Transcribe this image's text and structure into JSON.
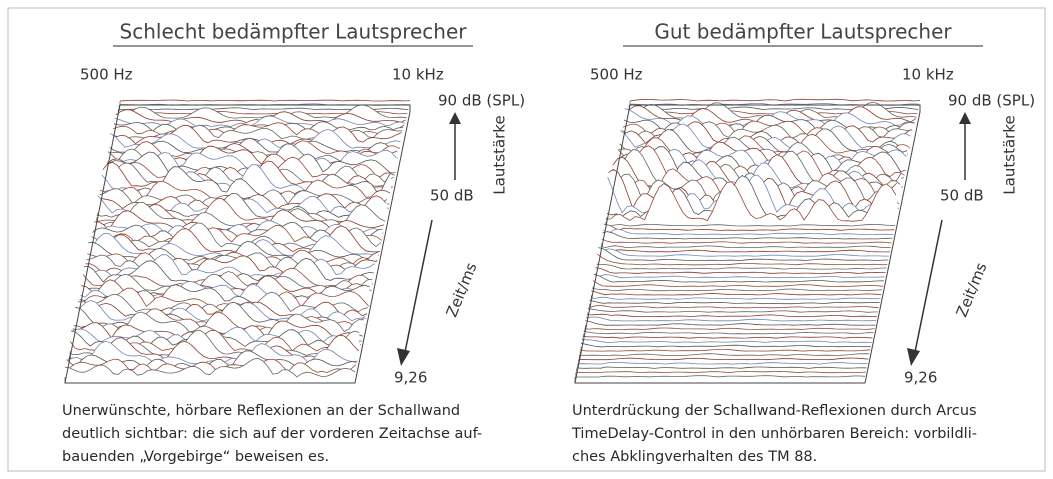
{
  "panels": [
    {
      "title": "Schlecht bedämpfter Lautsprecher",
      "freq_low": "500 Hz",
      "freq_high": "10 kHz",
      "level_top": "90 dB (SPL)",
      "level_axis": "Lautstärke",
      "level_mid": "50 dB",
      "time_axis": "Zeit/ms",
      "time_end": "9,26",
      "caption": [
        "Unerwünschte, hörbare Reflexionen an der Schallwand",
        "deutlich sichtbar: die sich auf der vorderen Zeitachse auf-",
        "bauenden „Vorgebirge“ beweisen es."
      ]
    },
    {
      "title": "Gut bedämpfter Lautsprecher",
      "freq_low": "500 Hz",
      "freq_high": "10 kHz",
      "level_top": "90 dB (SPL)",
      "level_axis": "Lautstärke",
      "level_mid": "50 dB",
      "time_axis": "Zeit/ms",
      "time_end": "9,26",
      "caption": [
        "Unterdrückung der Schallwand-Reflexionen durch Arcus",
        "TimeDelay-Control in den unhörbaren Bereich: vorbildli-",
        "ches Abklingverhalten des TM 88."
      ]
    }
  ]
}
